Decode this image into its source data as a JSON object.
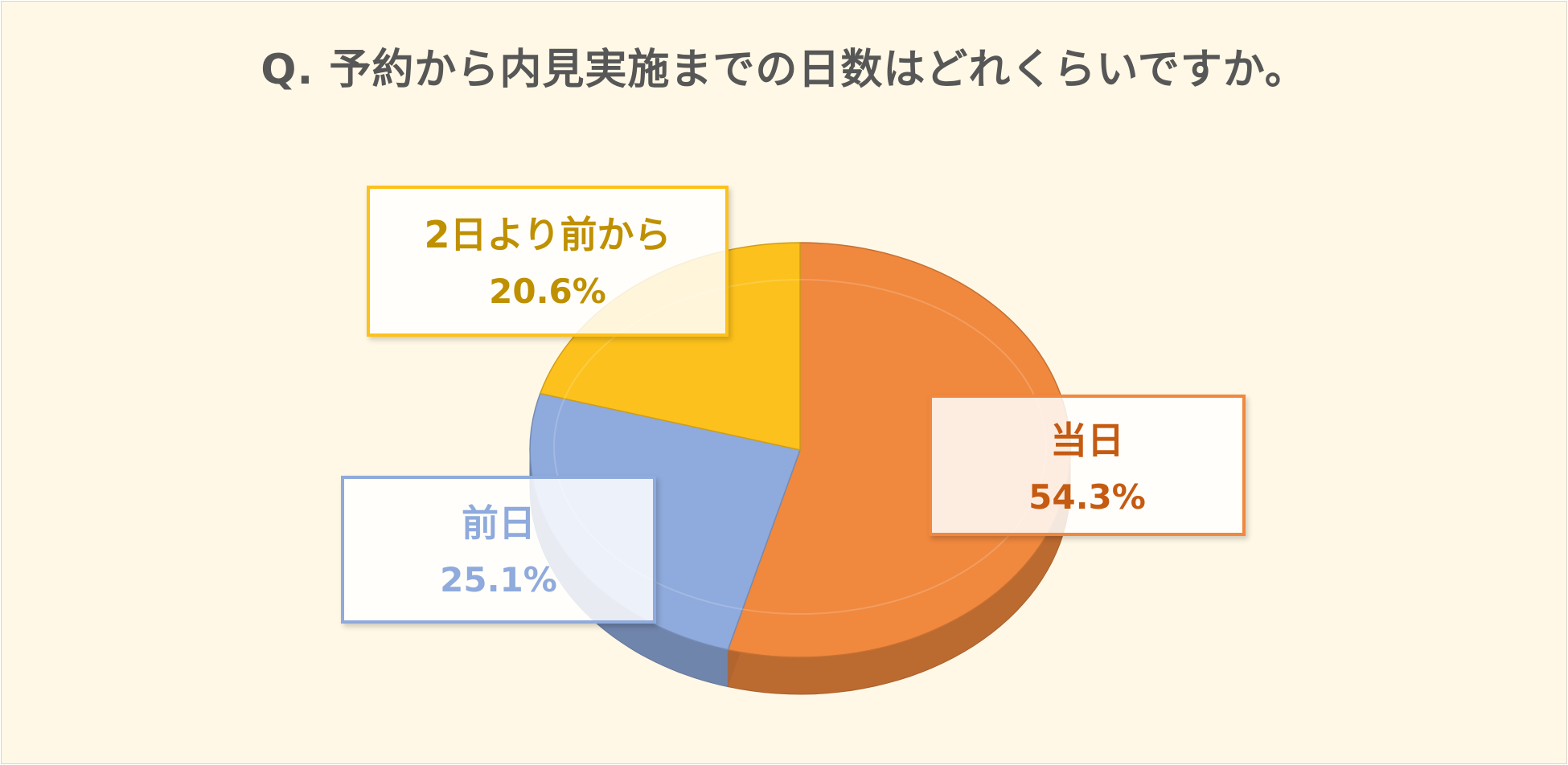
{
  "chart_data": {
    "type": "pie",
    "title": "Q. 予約から内見実施までの日数はどれくらいですか。",
    "categories": [
      "当日",
      "前日",
      "2日より前から"
    ],
    "values": [
      54.3,
      25.1,
      20.6
    ],
    "labels": [
      "54.3%",
      "25.1%",
      "20.6%"
    ],
    "colors": [
      "#f0883e",
      "#8faadc",
      "#fcc11c"
    ],
    "label_colors": [
      "#c55a11",
      "#8faadc",
      "#bf9000"
    ],
    "legend": "none",
    "style": "3d"
  }
}
